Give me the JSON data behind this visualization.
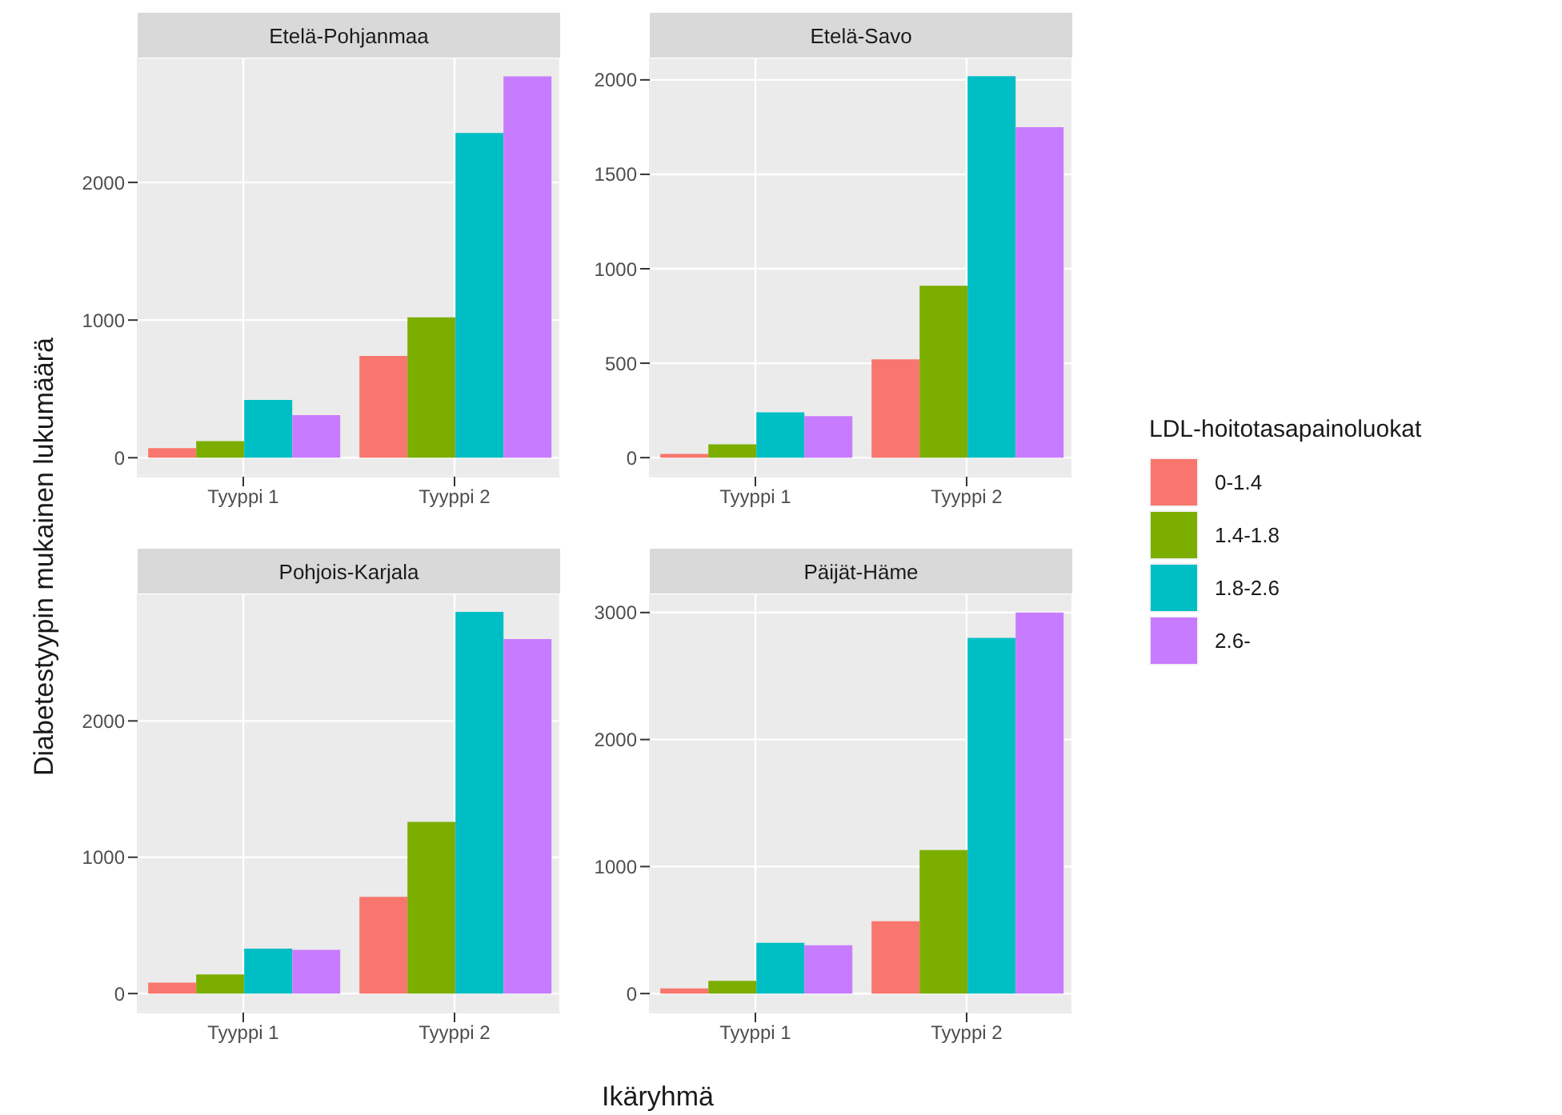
{
  "chart_data": [
    {
      "type": "bar",
      "title": "Etelä-Pohjanmaa",
      "ylabel": "Diabetestyypin mukainen lukumäärä",
      "legend_title": "LDL-hoitotasapainoluokat",
      "legend": "right",
      "categories": [
        "Tyyppi 1",
        "Tyyppi 2"
      ],
      "ylim": [
        -138,
        2907
      ],
      "yticks": [
        0,
        1000,
        2000
      ],
      "grid": true,
      "series": [
        {
          "name": "0-1.4",
          "color": "#f8766d",
          "values": [
            70,
            740
          ]
        },
        {
          "name": "1.4-1.8",
          "color": "#7cae00",
          "values": [
            120,
            1020
          ]
        },
        {
          "name": "1.8-2.6",
          "color": "#00bfc4",
          "values": [
            420,
            2360
          ]
        },
        {
          "name": "2.6-",
          "color": "#c77cff",
          "values": [
            310,
            2770
          ]
        }
      ]
    },
    {
      "type": "bar",
      "title": "Etelä-Savo",
      "categories": [
        "Tyyppi 1",
        "Tyyppi 2"
      ],
      "ylim": [
        -101,
        2118
      ],
      "yticks": [
        0,
        500,
        1000,
        1500,
        2000
      ],
      "grid": true,
      "series": [
        {
          "color": "#f8766d",
          "values": [
            20,
            520
          ]
        },
        {
          "color": "#7cae00",
          "values": [
            70,
            910
          ]
        },
        {
          "color": "#00bfc4",
          "values": [
            240,
            2020
          ]
        },
        {
          "color": "#c77cff",
          "values": [
            220,
            1750
          ]
        }
      ]
    },
    {
      "type": "bar",
      "title": "Pohjois-Karjala",
      "xlabel": "Ikäryhmä",
      "categories": [
        "Tyyppi 1",
        "Tyyppi 2"
      ],
      "ylim": [
        -140,
        2935
      ],
      "yticks": [
        0,
        1000,
        2000
      ],
      "grid": true,
      "series": [
        {
          "color": "#f8766d",
          "values": [
            80,
            710
          ]
        },
        {
          "color": "#7cae00",
          "values": [
            140,
            1260
          ]
        },
        {
          "color": "#00bfc4",
          "values": [
            330,
            2800
          ]
        },
        {
          "color": "#c77cff",
          "values": [
            320,
            2600
          ]
        }
      ]
    },
    {
      "type": "bar",
      "title": "Päijät-Häme",
      "categories": [
        "Tyyppi 1",
        "Tyyppi 2"
      ],
      "ylim": [
        -150,
        3150
      ],
      "yticks": [
        0,
        1000,
        2000,
        3000
      ],
      "grid": true,
      "series": [
        {
          "color": "#f8766d",
          "values": [
            40,
            570
          ]
        },
        {
          "color": "#7cae00",
          "values": [
            100,
            1130
          ]
        },
        {
          "color": "#00bfc4",
          "values": [
            400,
            2800
          ]
        },
        {
          "color": "#c77cff",
          "values": [
            380,
            3000
          ]
        }
      ]
    }
  ]
}
